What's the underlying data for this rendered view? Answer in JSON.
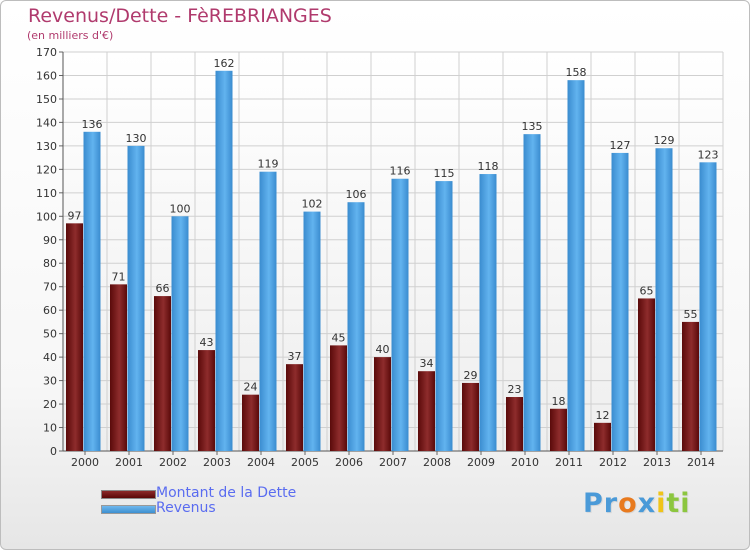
{
  "chart_data": {
    "type": "bar",
    "title": "Revenus/Dette - FèREBRIANGES",
    "subtitle": "(en milliers d'€)",
    "xlabel": "",
    "ylabel": "",
    "ylim": [
      0,
      170
    ],
    "yticks": [
      0,
      10,
      20,
      30,
      40,
      50,
      60,
      70,
      80,
      90,
      100,
      110,
      120,
      130,
      140,
      150,
      160,
      170
    ],
    "categories": [
      "2000",
      "2001",
      "2002",
      "2003",
      "2004",
      "2005",
      "2006",
      "2007",
      "2008",
      "2009",
      "2010",
      "2011",
      "2012",
      "2013",
      "2014"
    ],
    "series": [
      {
        "name": "Montant de la Dette",
        "color": "#7a1f1f",
        "values": [
          97,
          71,
          66,
          43,
          24,
          37,
          45,
          40,
          34,
          29,
          23,
          18,
          12,
          65,
          55
        ]
      },
      {
        "name": "Revenus",
        "color": "#4aa3e6",
        "values": [
          136,
          130,
          100,
          162,
          119,
          102,
          106,
          116,
          115,
          118,
          135,
          158,
          127,
          129,
          123
        ]
      }
    ],
    "grid": true,
    "legend_position": "bottom-left"
  },
  "logo": {
    "letters": [
      {
        "ch": "P",
        "color": "#4a9ad8"
      },
      {
        "ch": "r",
        "color": "#4a9ad8"
      },
      {
        "ch": "o",
        "color": "#e87a1e"
      },
      {
        "ch": "x",
        "color": "#4a9ad8"
      },
      {
        "ch": "i",
        "color": "#f0c419"
      },
      {
        "ch": "t",
        "color": "#8cc63f"
      },
      {
        "ch": "i",
        "color": "#8cc63f"
      }
    ]
  }
}
